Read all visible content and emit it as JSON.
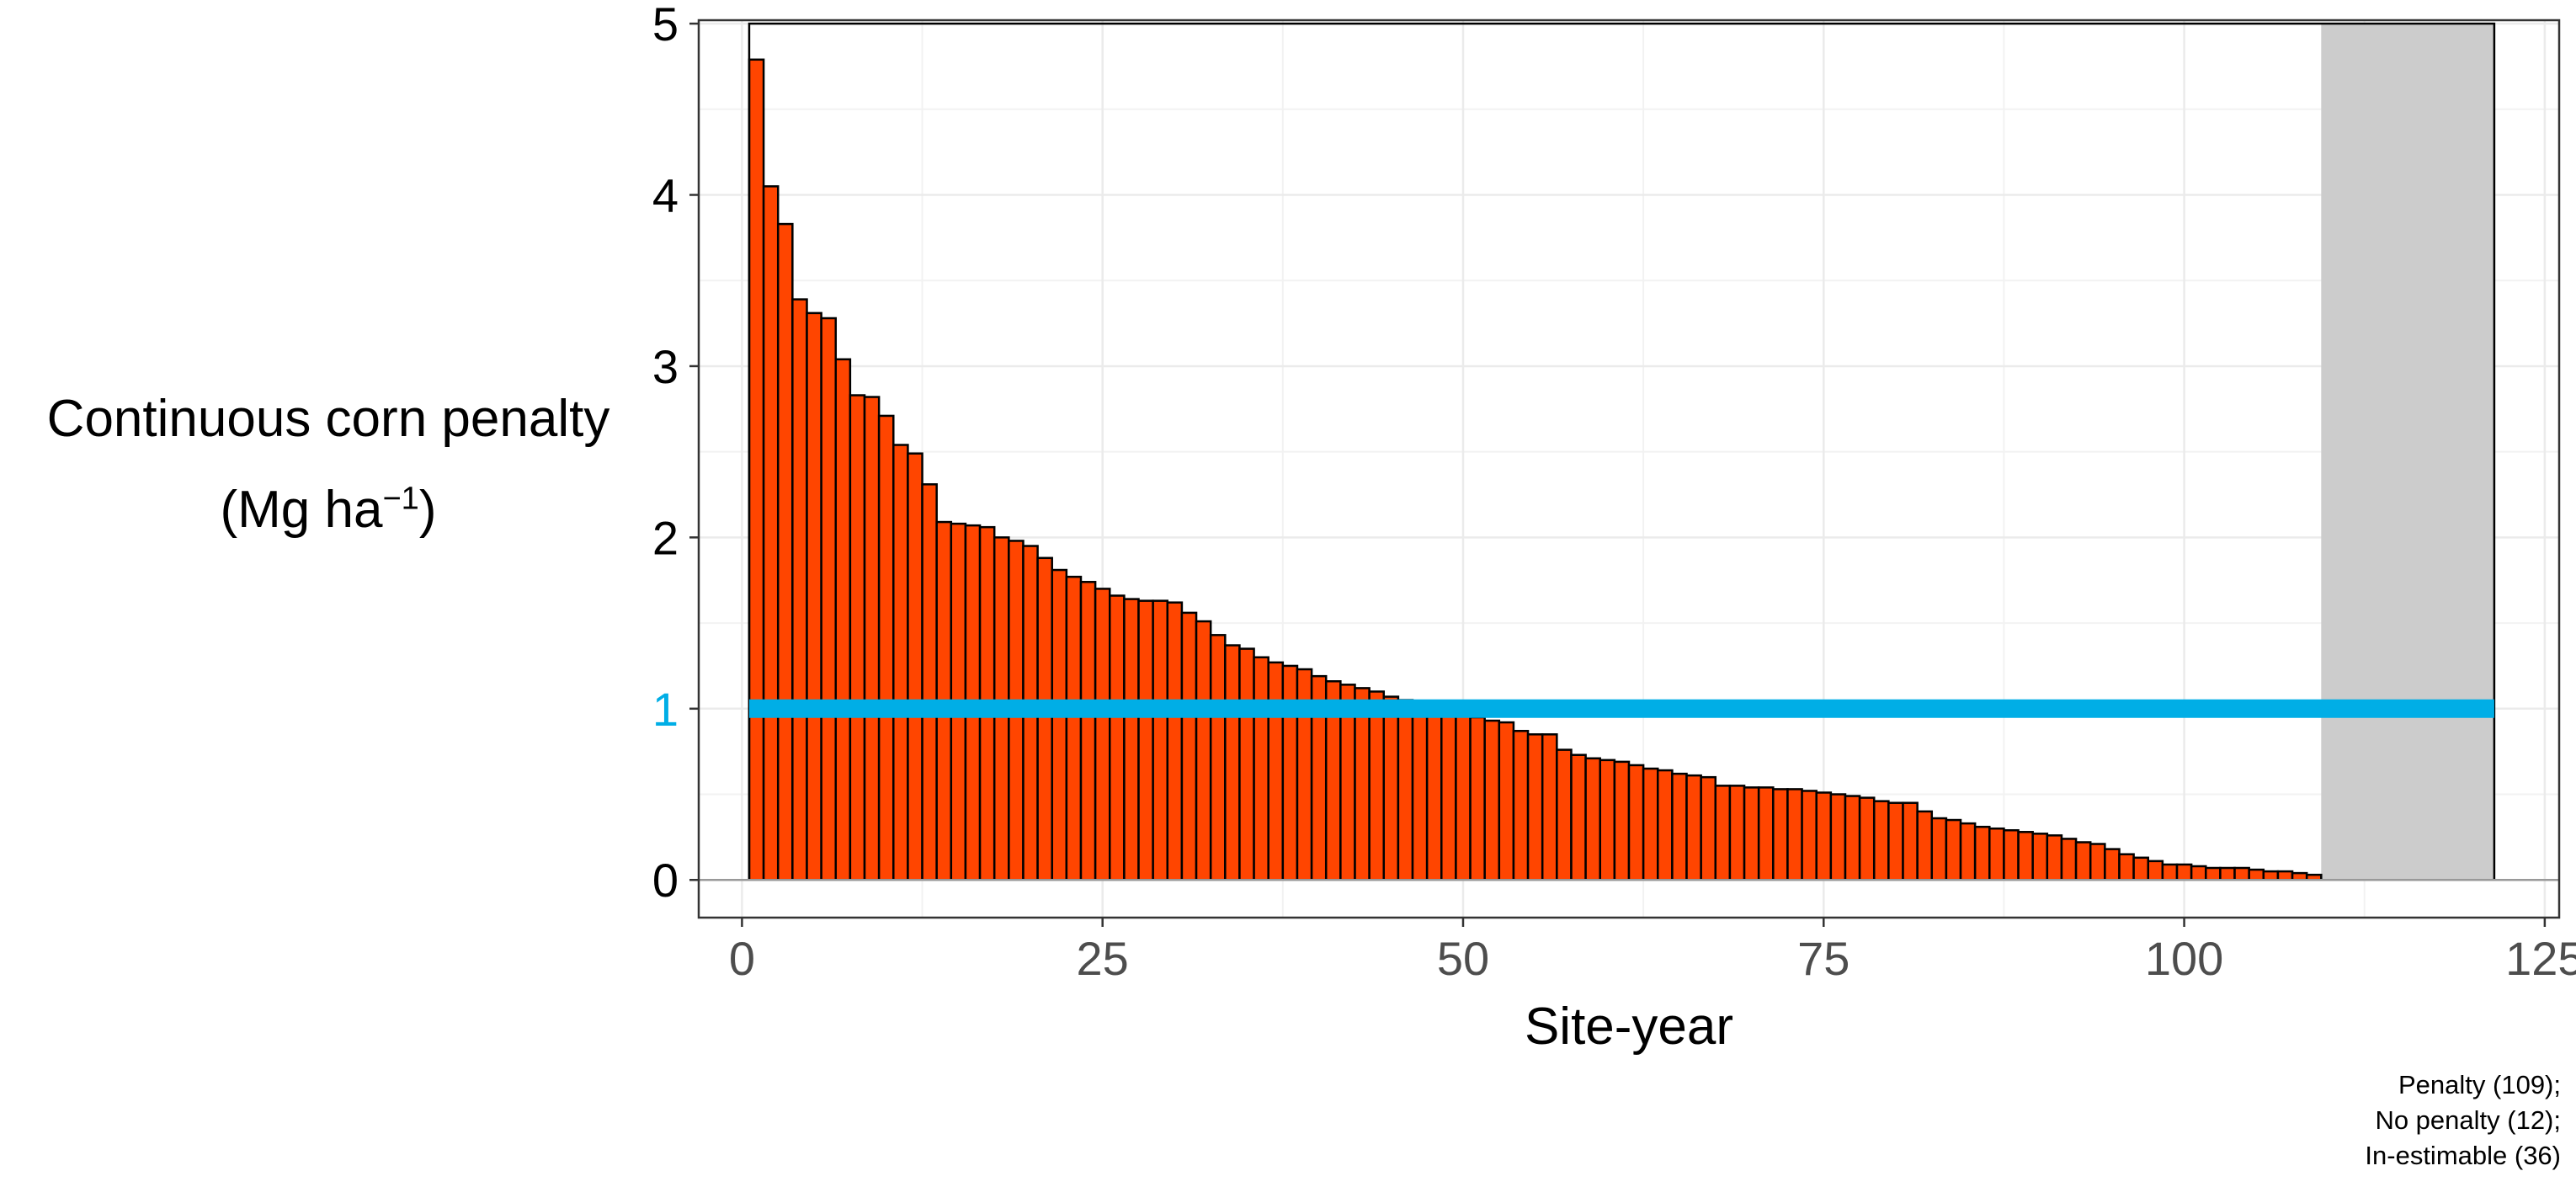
{
  "chart_data": {
    "type": "bar",
    "xlabel": "Site-year",
    "ylabel_line1": "Continuous corn penalty",
    "ylabel_unit_base": "(Mg  ha",
    "ylabel_unit_exp": "−1",
    "ylabel_unit_close": ")",
    "xlim": [
      -3,
      126
    ],
    "ylim": [
      -0.22,
      5.02
    ],
    "x_ticks": [
      0,
      25,
      50,
      75,
      100,
      125
    ],
    "x_tick_labels": [
      "0",
      "25",
      "50",
      "75",
      "100",
      "125"
    ],
    "y_ticks": [
      0,
      1,
      2,
      3,
      4,
      5
    ],
    "y_tick_labels": [
      "0",
      "1",
      "2",
      "3",
      "4",
      "5"
    ],
    "highlight_tick": {
      "value": 1,
      "label": "1",
      "color": "#00aee6"
    },
    "grid": true,
    "theme": "bw",
    "bar_fill": "#ff4500",
    "bar_outline": "#000000",
    "penalty_bars": {
      "x_start": 1,
      "values": [
        4.79,
        4.05,
        3.83,
        3.39,
        3.31,
        3.28,
        3.04,
        2.83,
        2.82,
        2.71,
        2.54,
        2.49,
        2.31,
        2.09,
        2.08,
        2.07,
        2.06,
        2.0,
        1.98,
        1.95,
        1.88,
        1.81,
        1.77,
        1.74,
        1.7,
        1.66,
        1.64,
        1.63,
        1.63,
        1.62,
        1.56,
        1.51,
        1.43,
        1.37,
        1.35,
        1.3,
        1.27,
        1.25,
        1.23,
        1.19,
        1.16,
        1.14,
        1.12,
        1.1,
        1.07,
        1.05,
        1.02,
        1.0,
        0.98,
        0.97,
        0.95,
        0.93,
        0.92,
        0.87,
        0.85,
        0.85,
        0.76,
        0.73,
        0.71,
        0.7,
        0.69,
        0.67,
        0.65,
        0.64,
        0.62,
        0.61,
        0.6,
        0.55,
        0.55,
        0.54,
        0.54,
        0.53,
        0.53,
        0.52,
        0.51,
        0.5,
        0.49,
        0.48,
        0.46,
        0.45,
        0.45,
        0.4,
        0.36,
        0.35,
        0.33,
        0.31,
        0.3,
        0.29,
        0.28,
        0.27,
        0.26,
        0.24,
        0.22,
        0.21,
        0.18,
        0.15,
        0.13,
        0.11,
        0.09,
        0.09,
        0.08,
        0.07,
        0.07,
        0.07,
        0.06,
        0.05,
        0.05,
        0.04,
        0.03
      ]
    },
    "no_penalty_bars": {
      "x_start": 110,
      "count": 12,
      "fill": "#cccccc"
    },
    "frame_bar": {
      "x_from": 1,
      "x_to": 121,
      "value": 5
    },
    "reference_line": {
      "y": 1,
      "x_from": 0.5,
      "x_to": 121.5,
      "color": "#00aee6"
    },
    "caption": [
      "Penalty (109);",
      "No penalty (12);",
      "In-estimable (36)"
    ]
  }
}
